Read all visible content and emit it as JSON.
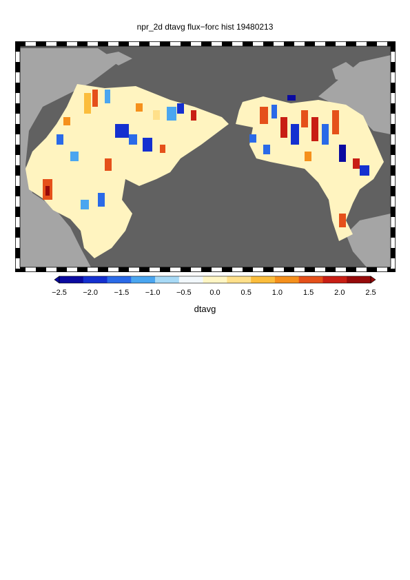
{
  "title": "npr_2d dtavg flux−forc hist 19480213",
  "map": {
    "ocean_color": "#616161",
    "land_color": "#a5a5a5"
  },
  "colorbar": {
    "label": "dtavg",
    "ticks": [
      "−2.5",
      "−2.0",
      "−1.5",
      "−1.0",
      "−0.5",
      "0.0",
      "0.5",
      "1.0",
      "1.5",
      "2.0",
      "2.5"
    ],
    "colors": [
      "#0a0aa0",
      "#1430d0",
      "#2a6ae8",
      "#4aa6f0",
      "#a8daf6",
      "#f2f8fc",
      "#fff6c4",
      "#ffe08a",
      "#fbbd3c",
      "#f5901c",
      "#e5501a",
      "#c81e14",
      "#960a0a"
    ]
  }
}
